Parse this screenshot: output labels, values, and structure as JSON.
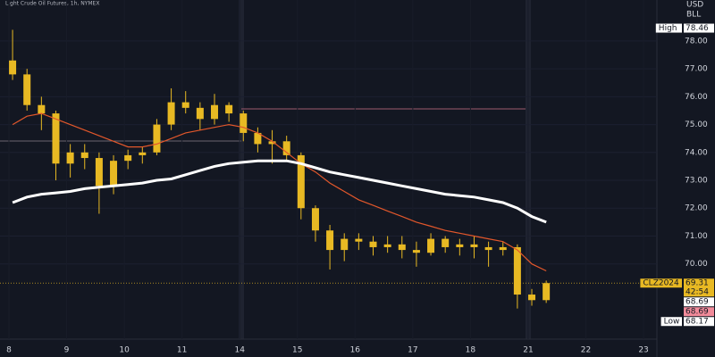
{
  "chart_data": {
    "type": "candlestick",
    "title": "Light Crude Oil Futures, 1h, NYMEX",
    "currency": "USD",
    "unit": "BLL",
    "categories": [
      "8",
      "9",
      "10",
      "11",
      "14",
      "15",
      "16",
      "17",
      "18",
      "21",
      "22",
      "23"
    ],
    "open": [
      [
        77.3,
        76.8,
        75.7,
        75.4
      ],
      [
        73.6,
        74.0,
        73.8,
        72.8
      ],
      [
        73.7,
        73.9,
        74.0,
        75.0
      ],
      [
        75.8,
        75.6,
        75.2,
        75.7
      ],
      [
        75.4,
        74.7,
        74.3,
        74.4
      ],
      [
        73.9,
        72.0,
        71.2,
        70.5
      ],
      [
        70.9,
        70.8,
        70.6,
        70.7
      ],
      [
        70.5,
        70.4,
        70.9,
        70.6
      ],
      [
        70.7,
        70.6,
        70.5,
        70.6
      ],
      [
        68.9,
        68.7
      ],
      [],
      []
    ],
    "high": [
      [
        78.4,
        77.0,
        76.0,
        75.5
      ],
      [
        74.3,
        74.3,
        74.0,
        73.9
      ],
      [
        74.1,
        74.2,
        75.2,
        76.3
      ],
      [
        76.2,
        75.8,
        76.1,
        75.8
      ],
      [
        75.5,
        74.9,
        74.8,
        74.6
      ],
      [
        74.0,
        72.1,
        71.4,
        71.1
      ],
      [
        71.1,
        71.0,
        71.0,
        71.0
      ],
      [
        70.8,
        71.1,
        71.0,
        70.9
      ],
      [
        71.0,
        70.8,
        70.8,
        70.7
      ],
      [
        69.1,
        69.4
      ],
      [],
      []
    ],
    "low": [
      [
        76.6,
        75.5,
        74.8,
        73.0
      ],
      [
        73.1,
        73.4,
        71.8,
        72.5
      ],
      [
        73.4,
        73.6,
        73.9,
        74.8
      ],
      [
        75.4,
        74.8,
        75.0,
        75.1
      ],
      [
        74.4,
        74.0,
        73.6,
        73.7
      ],
      [
        71.6,
        70.8,
        69.8,
        70.1
      ],
      [
        70.5,
        70.3,
        70.4,
        70.2
      ],
      [
        69.9,
        70.3,
        70.4,
        70.3
      ],
      [
        70.2,
        69.9,
        70.3,
        68.4
      ],
      [
        68.5,
        68.6
      ],
      [],
      []
    ],
    "close": [
      [
        76.8,
        75.7,
        75.4,
        73.6
      ],
      [
        74.0,
        73.8,
        72.8,
        73.7
      ],
      [
        73.9,
        74.0,
        75.0,
        75.8
      ],
      [
        75.6,
        75.2,
        75.7,
        75.4
      ],
      [
        74.7,
        74.3,
        74.4,
        73.9
      ],
      [
        72.0,
        71.2,
        70.5,
        70.9
      ],
      [
        70.8,
        70.6,
        70.7,
        70.5
      ],
      [
        70.4,
        70.9,
        70.6,
        70.7
      ],
      [
        70.6,
        70.5,
        70.6,
        68.9
      ],
      [
        68.7,
        69.31
      ],
      [],
      []
    ],
    "ma_fast": [
      [
        75.0,
        75.3,
        75.4,
        75.2
      ],
      [
        75.0,
        74.8,
        74.6,
        74.4
      ],
      [
        74.2,
        74.2,
        74.3,
        74.5
      ],
      [
        74.7,
        74.8,
        74.9,
        75.0
      ],
      [
        74.9,
        74.7,
        74.4,
        74.0
      ],
      [
        73.6,
        73.3,
        72.9,
        72.6
      ],
      [
        72.3,
        72.1,
        71.9,
        71.7
      ],
      [
        71.5,
        71.35,
        71.2,
        71.1
      ],
      [
        71.0,
        70.9,
        70.8,
        70.5
      ],
      [
        70.0,
        69.75
      ],
      [],
      []
    ],
    "ma_slow": [
      [
        72.2,
        72.4,
        72.5,
        72.55
      ],
      [
        72.6,
        72.7,
        72.75,
        72.8
      ],
      [
        72.85,
        72.9,
        73.0,
        73.05
      ],
      [
        73.2,
        73.35,
        73.5,
        73.6
      ],
      [
        73.65,
        73.7,
        73.7,
        73.7
      ],
      [
        73.6,
        73.45,
        73.3,
        73.2
      ],
      [
        73.1,
        73.0,
        72.9,
        72.8
      ],
      [
        72.7,
        72.6,
        72.5,
        72.45
      ],
      [
        72.4,
        72.3,
        72.2,
        72.0
      ],
      [
        71.7,
        71.5
      ],
      [],
      []
    ],
    "candle_color": "#e8b923",
    "ma_fast_color": "#e2572b",
    "ma_slow_color": "#ffffff",
    "ylim": [
      67.3,
      79.47
    ],
    "yticks": [
      {
        "value": 70,
        "label": "70.00"
      },
      {
        "value": 71,
        "label": "71.00"
      },
      {
        "value": 72,
        "label": "72.00"
      },
      {
        "value": 73,
        "label": "73.00"
      },
      {
        "value": 74,
        "label": "74.00"
      },
      {
        "value": 75,
        "label": "75.00"
      },
      {
        "value": 76,
        "label": "76.00"
      },
      {
        "value": 77,
        "label": "77.00"
      },
      {
        "value": 78,
        "label": "78.00"
      }
    ],
    "grid": true,
    "price_labels": [
      {
        "label": "High",
        "value": 78.46,
        "bg": "#ffffff",
        "fg": "#131722"
      },
      {
        "label": "CLZ2024",
        "value": 69.31,
        "extra": "42:54",
        "bg": "#e8b923",
        "fg": "#131722"
      },
      {
        "value": 68.69,
        "bg": "#ffffff",
        "fg": "#131722"
      },
      {
        "value": 68.69,
        "bg": "#f28b9a",
        "fg": "#131722"
      },
      {
        "label": "Low",
        "value": 68.17,
        "bg": "#ffffff",
        "fg": "#131722"
      }
    ]
  }
}
